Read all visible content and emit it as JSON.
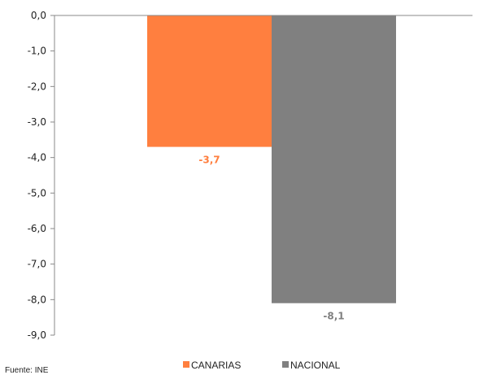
{
  "chart_data": {
    "type": "bar",
    "categories": [
      "CANARIAS",
      "NACIONAL"
    ],
    "values": [
      -3.7,
      -8.1
    ],
    "data_labels": [
      "-3,7",
      "-8,1"
    ],
    "colors": [
      "#ff7f3f",
      "#808080"
    ],
    "label_colors": [
      "#ff7f3f",
      "#808080"
    ],
    "ylim": [
      -9,
      0
    ],
    "yticks": [
      0,
      -1,
      -2,
      -3,
      -4,
      -5,
      -6,
      -7,
      -8,
      -9
    ],
    "ytick_labels": [
      "0,0",
      "-1,0",
      "-2,0",
      "-3,0",
      "-4,0",
      "-5,0",
      "-6,0",
      "-7,0",
      "-8,0",
      "-9,0"
    ],
    "grid": false,
    "legend": {
      "position": "bottom",
      "entries": [
        {
          "label": "CANARIAS",
          "color": "#ff7f3f"
        },
        {
          "label": "NACIONAL",
          "color": "#808080"
        }
      ]
    },
    "title": "",
    "xlabel": "",
    "ylabel": ""
  },
  "source_text": "Fuente: INE"
}
